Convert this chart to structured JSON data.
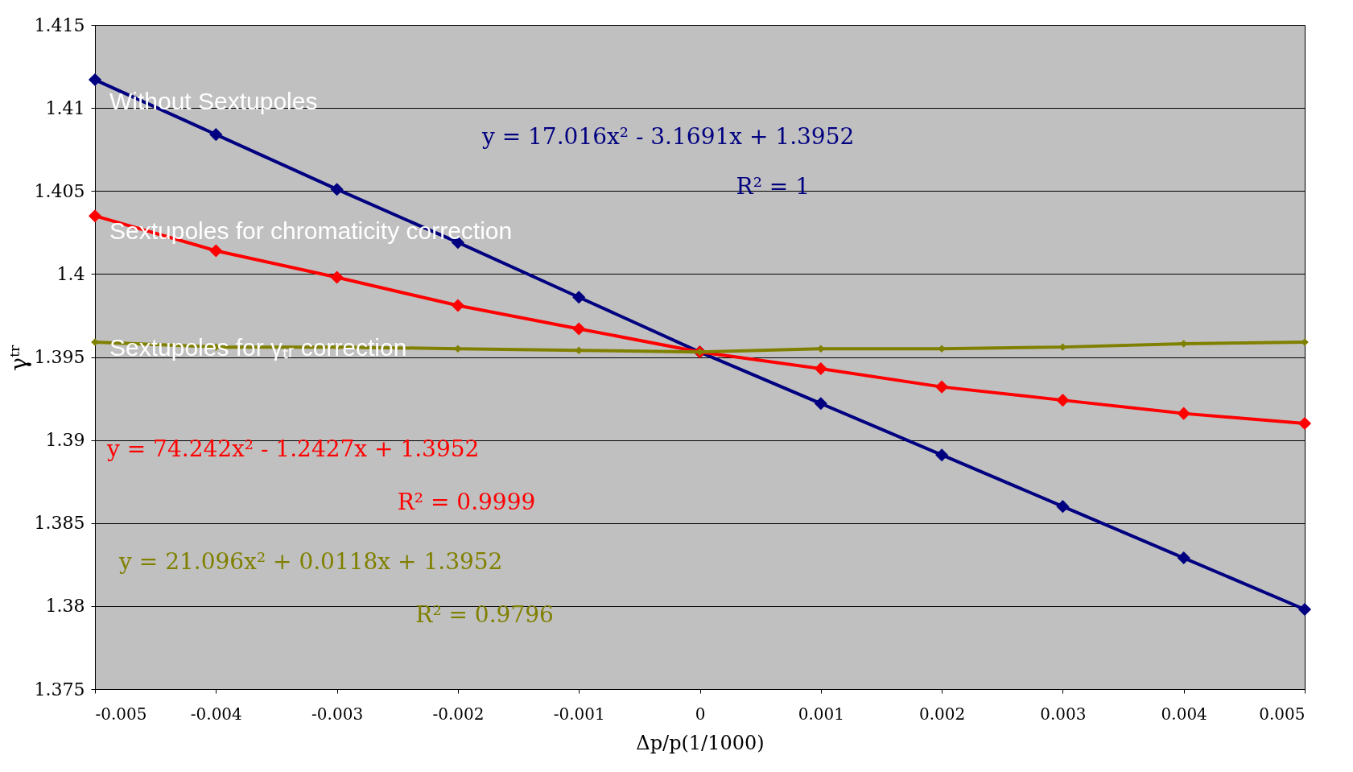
{
  "chart_data": {
    "type": "line",
    "xlabel": "Δp/p(1/1000)",
    "ylabel": "γᵗʳ",
    "x": [
      -0.005,
      -0.004,
      -0.003,
      -0.002,
      -0.001,
      0,
      0.001,
      0.002,
      0.003,
      0.004,
      0.005
    ],
    "series": [
      {
        "name": "Without Sextupoles",
        "color": "#000080",
        "values": [
          1.4117,
          1.4084,
          1.4051,
          1.4019,
          1.3986,
          1.3953,
          1.3922,
          1.3891,
          1.386,
          1.3829,
          1.3798
        ]
      },
      {
        "name": "Sextupoles for chromaticity correction",
        "color": "#ff0000",
        "values": [
          1.4035,
          1.4014,
          1.3998,
          1.3981,
          1.3967,
          1.3953,
          1.3943,
          1.3932,
          1.3924,
          1.3916,
          1.391
        ]
      },
      {
        "name": "Sextupoles for γₜᵣ correction",
        "color": "#808000",
        "values": [
          1.3959,
          1.3956,
          1.3956,
          1.3955,
          1.3954,
          1.3953,
          1.3955,
          1.3955,
          1.3956,
          1.3958,
          1.3959
        ]
      }
    ],
    "annotations": [
      "y = 17.016x² - 3.1691x + 1.3952",
      "R² = 1",
      "y = 74.242x² - 1.2427x + 1.3952",
      "R² = 0.9999",
      "y = 21.096x² + 0.0118x + 1.3952",
      "R² = 0.9796"
    ],
    "xlim": [
      -0.005,
      0.005
    ],
    "xticks": [
      -0.005,
      -0.004,
      -0.003,
      -0.002,
      -0.001,
      0,
      0.001,
      0.002,
      0.003,
      0.004,
      0.005
    ],
    "ylim": [
      1.375,
      1.415
    ],
    "yticks": [
      1.375,
      1.38,
      1.385,
      1.39,
      1.395,
      1.4,
      1.405,
      1.41,
      1.415
    ],
    "grid": "y",
    "legend": false,
    "marker": "diamond",
    "line_style": "solid"
  }
}
